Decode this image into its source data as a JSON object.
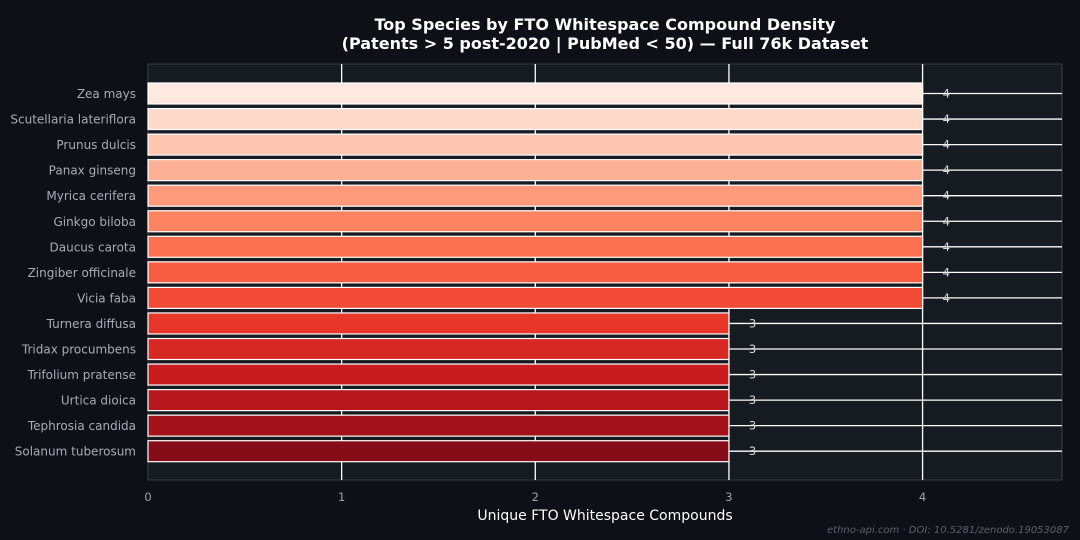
{
  "chart_data": {
    "type": "bar",
    "orientation": "horizontal",
    "title_lines": [
      "Top Species by FTO Whitespace Compound Density",
      "(Patents > 5 post-2020  |  PubMed < 50)  — Full 76k Dataset"
    ],
    "xlabel": "Unique FTO Whitespace Compounds",
    "ylabel": "",
    "xlim": [
      0,
      4.72
    ],
    "xticks": [
      0,
      1,
      2,
      3,
      4
    ],
    "grid": true,
    "categories": [
      "Zea mays",
      "Scutellaria lateriflora",
      "Prunus dulcis",
      "Panax ginseng",
      "Myrica cerifera",
      "Ginkgo biloba",
      "Daucus carota",
      "Zingiber officinale",
      "Vicia faba",
      "Turnera diffusa",
      "Tridax procumbens",
      "Trifolium pratense",
      "Urtica dioica",
      "Tephrosia candida",
      "Solanum tuberosum"
    ],
    "values": [
      4,
      4,
      4,
      4,
      4,
      4,
      4,
      4,
      4,
      3,
      3,
      3,
      3,
      3,
      3
    ],
    "colors": [
      "#fee9e1",
      "#fdd9c9",
      "#fcc6b0",
      "#fcb095",
      "#fc9a7b",
      "#fc8463",
      "#fb7050",
      "#f85d42",
      "#f14b37",
      "#e6372a",
      "#d72824",
      "#c81c1f",
      "#b7161c",
      "#a3111a",
      "#860c17"
    ]
  },
  "footer": "ethno-api.com  ·  DOI: 10.5281/zenodo.19053087",
  "colors": {
    "background": "#0d1017",
    "plot_background": "#161a21",
    "grid": "#ffffff",
    "spine": "#3a3e45"
  }
}
